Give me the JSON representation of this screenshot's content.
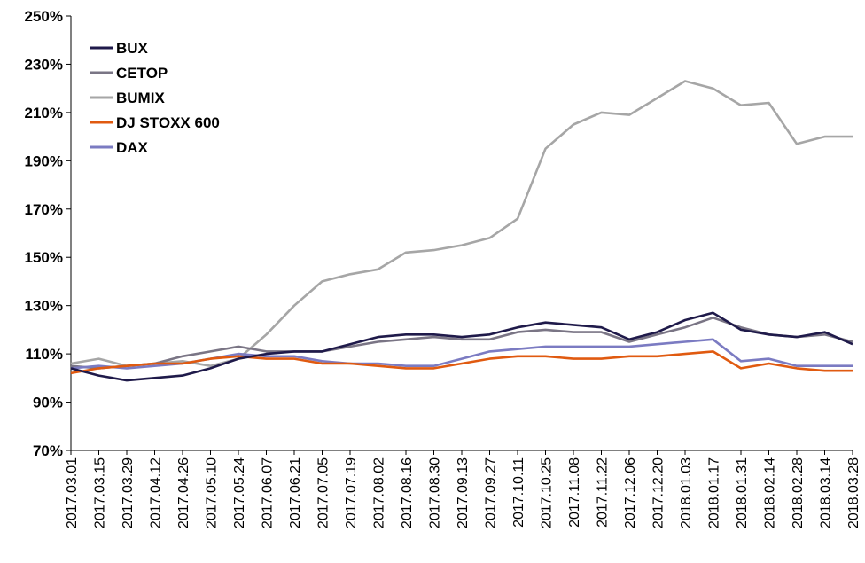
{
  "chart_data": {
    "type": "line",
    "title": "",
    "xlabel": "",
    "ylabel": "",
    "ylim": [
      70,
      250
    ],
    "y_ticks": [
      "250%",
      "230%",
      "210%",
      "190%",
      "170%",
      "150%",
      "130%",
      "110%",
      "90%",
      "70%"
    ],
    "x_ticks": [
      "2017.03.01",
      "2017.03.15",
      "2017.03.29",
      "2017.04.12",
      "2017.04.26",
      "2017.05.10",
      "2017.05.24",
      "2017.06.07",
      "2017.06.21",
      "2017.07.05",
      "2017.07.19",
      "2017.08.02",
      "2017.08.16",
      "2017.08.30",
      "2017.09.13",
      "2017.09.27",
      "2017.10.11",
      "2017.10.25",
      "2017.11.08",
      "2017.11.22",
      "2017.12.06",
      "2017.12.20",
      "2018.01.03",
      "2018.01.17",
      "2018.01.31",
      "2018.02.14",
      "2018.02.28",
      "2018.03.14",
      "2018.03.28"
    ],
    "grid": false,
    "legend_position": "top-left",
    "series": [
      {
        "name": "BUX",
        "color": "#1f1a4a",
        "values": [
          104,
          101,
          99,
          100,
          101,
          104,
          108,
          110,
          111,
          111,
          114,
          117,
          118,
          118,
          117,
          118,
          121,
          123,
          122,
          121,
          116,
          119,
          124,
          127,
          120,
          118,
          117,
          119,
          114
        ]
      },
      {
        "name": "CETOP",
        "color": "#7a7585",
        "values": [
          105,
          104,
          105,
          106,
          109,
          111,
          113,
          111,
          111,
          111,
          113,
          115,
          116,
          117,
          116,
          116,
          119,
          120,
          119,
          119,
          115,
          118,
          121,
          125,
          121,
          118,
          117,
          118,
          115
        ]
      },
      {
        "name": "BUMIX",
        "color": "#a6a6a6",
        "values": [
          106,
          108,
          105,
          106,
          107,
          105,
          108,
          118,
          130,
          140,
          143,
          145,
          152,
          153,
          155,
          158,
          166,
          195,
          205,
          210,
          209,
          216,
          223,
          220,
          213,
          214,
          197,
          200,
          200
        ]
      },
      {
        "name": "DJ STOXX 600",
        "color": "#e05a10",
        "values": [
          102,
          104,
          105,
          106,
          106,
          108,
          109,
          108,
          108,
          106,
          106,
          105,
          104,
          104,
          106,
          108,
          109,
          109,
          108,
          108,
          109,
          109,
          110,
          111,
          104,
          106,
          104,
          103,
          103
        ]
      },
      {
        "name": "DAX",
        "color": "#7b7bc2",
        "values": [
          104,
          105,
          104,
          105,
          106,
          108,
          110,
          109,
          109,
          107,
          106,
          106,
          105,
          105,
          108,
          111,
          112,
          113,
          113,
          113,
          113,
          114,
          115,
          116,
          107,
          108,
          105,
          105,
          105
        ]
      }
    ]
  }
}
